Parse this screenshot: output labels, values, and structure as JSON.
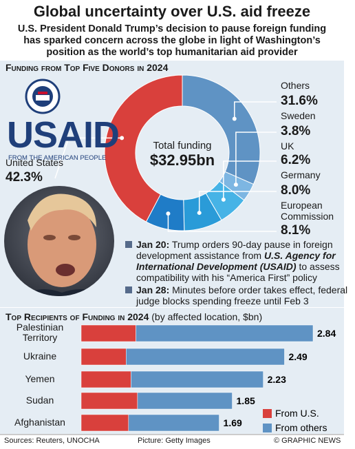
{
  "header": {
    "title": "Global uncertainty over U.S. aid freeze",
    "subtitle": "U.S. President Donald Trump’s decision to pause foreign funding has sparked concern across the globe in light of Washington’s position as the world’s top humanitarian aid provider"
  },
  "logo": {
    "name": "USAID",
    "tagline": "FROM THE AMERICAN PEOPLE"
  },
  "chart_data": [
    {
      "type": "donut",
      "title": "Funding from Top Five Donors in 2024",
      "center_label": "Total funding",
      "center_value": "$32.95bn",
      "categories": [
        "Others",
        "Sweden",
        "UK",
        "Germany",
        "European Commission",
        "United States"
      ],
      "values": [
        31.6,
        3.8,
        6.2,
        8.0,
        8.1,
        42.3
      ],
      "value_labels": [
        "31.6%",
        "3.8%",
        "6.2%",
        "8.0%",
        "8.1%",
        "42.3%"
      ],
      "colors": [
        "#5f93c4",
        "#7db6e2",
        "#46b3e6",
        "#2a9bd8",
        "#1f7cc7",
        "#d9403c"
      ]
    },
    {
      "type": "stacked-bar",
      "orientation": "horizontal",
      "title": "Top Recipients of Funding in 2024",
      "subtitle": "(by affected location, $bn)",
      "categories": [
        "Palestinian Territory",
        "Ukraine",
        "Yemen",
        "Sudan",
        "Afghanistan"
      ],
      "series": [
        {
          "name": "From U.S.",
          "color": "#d9403c",
          "values": [
            0.67,
            0.55,
            0.61,
            0.69,
            0.58
          ]
        },
        {
          "name": "From others",
          "color": "#5f93c4",
          "values": [
            2.17,
            1.94,
            1.62,
            1.16,
            1.11
          ]
        }
      ],
      "totals": [
        2.84,
        2.49,
        2.23,
        1.85,
        1.69
      ]
    }
  ],
  "timeline": [
    {
      "date": "Jan 20:",
      "parts": [
        "Trump orders 90-day pause in foreign development assistance from ",
        "U.S. Agency for International Development (USAID)",
        " to assess compatibility with his “America First” policy"
      ]
    },
    {
      "date": "Jan 28:",
      "parts": [
        "Minutes before order takes effect, federal judge blocks spending freeze until Feb 3"
      ]
    }
  ],
  "footer": {
    "source": "Sources: Reuters, UNOCHA",
    "credit": "Picture: Getty Images",
    "brand": "© GRAPHIC NEWS"
  }
}
